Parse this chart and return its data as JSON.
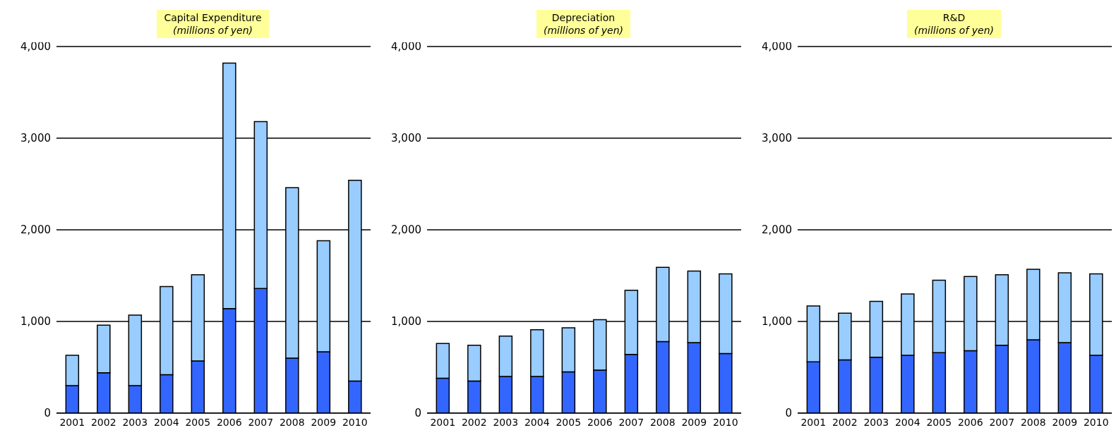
{
  "chart_data": [
    {
      "type": "bar",
      "title": "Capital Expenditure",
      "subtitle": "(millions of yen)",
      "categories": [
        "2001",
        "2002",
        "2003",
        "2004",
        "2005",
        "2006",
        "2007",
        "2008",
        "2009",
        "2010"
      ],
      "stacked": true,
      "grid": "y",
      "ylim": [
        0,
        4000
      ],
      "yticks": [
        {
          "value": 0,
          "label": "0"
        },
        {
          "value": 1000,
          "label": "1,000"
        },
        {
          "value": 2000,
          "label": "2,000"
        },
        {
          "value": 3000,
          "label": "3,000"
        },
        {
          "value": 4000,
          "label": "4,000"
        }
      ],
      "series": [
        {
          "color": "#3366ff",
          "values": [
            300,
            440,
            300,
            420,
            570,
            1140,
            1360,
            600,
            670,
            350
          ]
        },
        {
          "color": "#99ccff",
          "values": [
            330,
            520,
            770,
            960,
            940,
            2680,
            1820,
            1860,
            1210,
            2190
          ]
        }
      ]
    },
    {
      "type": "bar",
      "title": "Depreciation",
      "subtitle": "(millions of yen)",
      "categories": [
        "2001",
        "2002",
        "2003",
        "2004",
        "2005",
        "2006",
        "2007",
        "2008",
        "2009",
        "2010"
      ],
      "stacked": true,
      "grid": "y",
      "ylim": [
        0,
        4000
      ],
      "yticks": [
        {
          "value": 0,
          "label": "0"
        },
        {
          "value": 1000,
          "label": "1,000"
        },
        {
          "value": 2000,
          "label": "2,000"
        },
        {
          "value": 3000,
          "label": "3,000"
        },
        {
          "value": 4000,
          "label": "4,000"
        }
      ],
      "series": [
        {
          "color": "#3366ff",
          "values": [
            380,
            350,
            400,
            400,
            450,
            470,
            640,
            780,
            770,
            650
          ]
        },
        {
          "color": "#99ccff",
          "values": [
            380,
            390,
            440,
            510,
            480,
            550,
            700,
            810,
            780,
            870
          ]
        }
      ]
    },
    {
      "type": "bar",
      "title": "R&D",
      "subtitle": "(millions of yen)",
      "categories": [
        "2001",
        "2002",
        "2003",
        "2004",
        "2005",
        "2006",
        "2007",
        "2008",
        "2009",
        "2010"
      ],
      "stacked": true,
      "grid": "y",
      "ylim": [
        0,
        4000
      ],
      "yticks": [
        {
          "value": 0,
          "label": "0"
        },
        {
          "value": 1000,
          "label": "1,000"
        },
        {
          "value": 2000,
          "label": "2,000"
        },
        {
          "value": 3000,
          "label": "3,000"
        },
        {
          "value": 4000,
          "label": "4,000"
        }
      ],
      "series": [
        {
          "color": "#3366ff",
          "values": [
            560,
            580,
            610,
            630,
            660,
            680,
            740,
            800,
            770,
            630
          ]
        },
        {
          "color": "#99ccff",
          "values": [
            610,
            510,
            610,
            670,
            790,
            810,
            770,
            770,
            760,
            890
          ]
        }
      ]
    }
  ]
}
